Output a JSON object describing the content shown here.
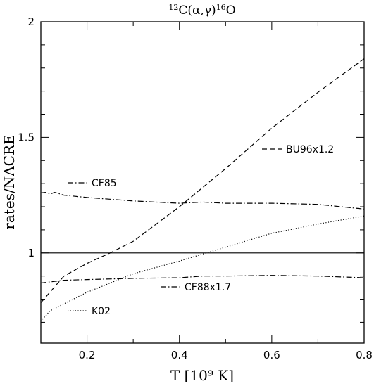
{
  "chart_data": {
    "type": "line",
    "title": {
      "sup1": "12",
      "mid": "C(α,γ)",
      "sup2": "16",
      "end": "O"
    },
    "xlabel": "T [10⁹ K]",
    "ylabel": "rates/NACRE",
    "xlim": [
      0.1,
      0.8
    ],
    "ylim": [
      0.61,
      2.0
    ],
    "xticks_major": [
      0.2,
      0.4,
      0.6,
      0.8
    ],
    "xticks_minor": [
      0.1,
      0.3,
      0.5,
      0.7
    ],
    "yticks_major": [
      1,
      1.5,
      2
    ],
    "yticks_minor": [
      0.7,
      0.8,
      0.9,
      1.1,
      1.2,
      1.3,
      1.4,
      1.6,
      1.7,
      1.8,
      1.9
    ],
    "grid": false,
    "series": [
      {
        "name": "BU96x1.2",
        "dash": "dashed",
        "x": [
          0.1,
          0.15,
          0.2,
          0.25,
          0.3,
          0.4,
          0.5,
          0.6,
          0.7,
          0.8
        ],
        "y": [
          0.785,
          0.9,
          0.955,
          1.0,
          1.05,
          1.2,
          1.365,
          1.54,
          1.695,
          1.84
        ]
      },
      {
        "name": "CF85",
        "dash": "dashdot",
        "x": [
          0.1,
          0.11,
          0.12,
          0.13,
          0.15,
          0.2,
          0.3,
          0.4,
          0.45,
          0.5,
          0.6,
          0.7,
          0.8
        ],
        "y": [
          1.26,
          1.262,
          1.255,
          1.262,
          1.25,
          1.24,
          1.225,
          1.215,
          1.22,
          1.215,
          1.215,
          1.21,
          1.19
        ]
      },
      {
        "name": "CF88x1.7",
        "dash": "dashdot",
        "x": [
          0.1,
          0.15,
          0.2,
          0.3,
          0.4,
          0.45,
          0.5,
          0.6,
          0.7,
          0.8
        ],
        "y": [
          0.87,
          0.882,
          0.885,
          0.89,
          0.893,
          0.9,
          0.9,
          0.903,
          0.9,
          0.893
        ]
      },
      {
        "name": "K02",
        "dash": "dotted",
        "x": [
          0.1,
          0.12,
          0.15,
          0.2,
          0.3,
          0.4,
          0.5,
          0.6,
          0.7,
          0.8
        ],
        "y": [
          0.705,
          0.75,
          0.78,
          0.83,
          0.91,
          0.965,
          1.025,
          1.085,
          1.125,
          1.16
        ]
      },
      {
        "name": "",
        "dash": "solid",
        "x": [
          0.1,
          0.8
        ],
        "y": [
          1.0,
          1.0
        ]
      }
    ],
    "legend": [
      {
        "label": "BU96x1.2",
        "series": 0
      },
      {
        "label": "CF85",
        "series": 1
      },
      {
        "label": "CF88x1.7",
        "series": 2
      },
      {
        "label": "K02",
        "series": 3
      }
    ]
  }
}
